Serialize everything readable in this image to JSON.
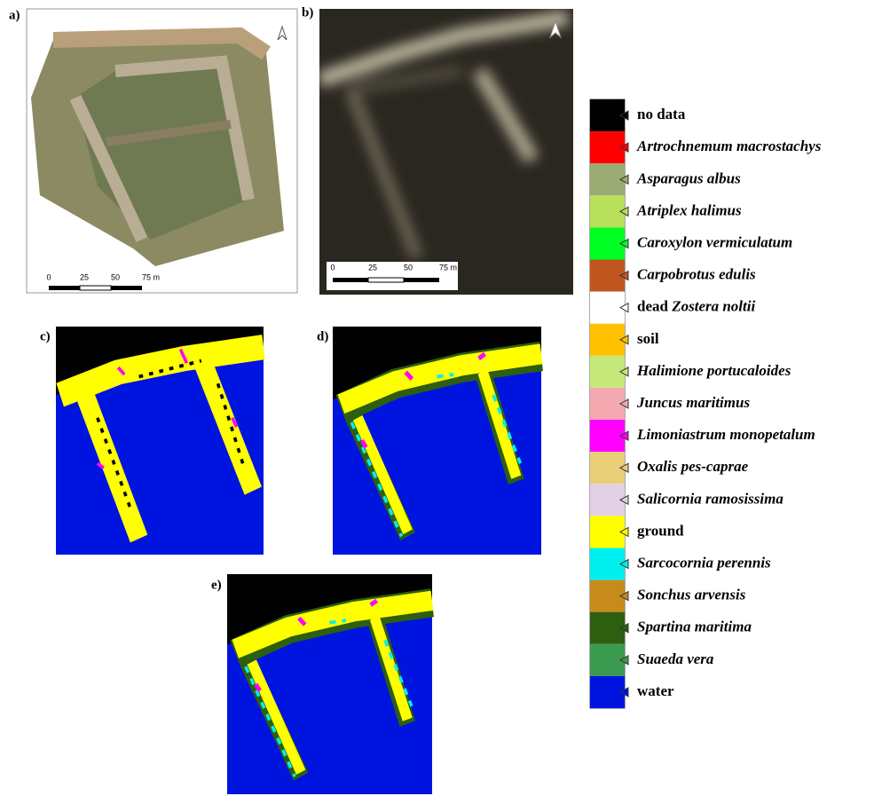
{
  "panels": [
    {
      "label": "a)",
      "scale_bar": [
        "0",
        "25",
        "50",
        "75 m"
      ]
    },
    {
      "label": "b)",
      "scale_bar": [
        "0",
        "25",
        "50",
        "75 m"
      ]
    },
    {
      "label": "c)"
    },
    {
      "label": "d)"
    },
    {
      "label": "e)"
    }
  ],
  "legend": {
    "items": [
      {
        "color": "#000000",
        "parts": [
          {
            "text": "no data",
            "italic": false
          }
        ]
      },
      {
        "color": "#ff0000",
        "parts": [
          {
            "text": "Artrochnemum macrostachys",
            "italic": true
          }
        ]
      },
      {
        "color": "#9aab74",
        "parts": [
          {
            "text": "Asparagus albus",
            "italic": true
          }
        ]
      },
      {
        "color": "#b8e05a",
        "parts": [
          {
            "text": "Atriplex halimus",
            "italic": true
          }
        ]
      },
      {
        "color": "#00ff22",
        "parts": [
          {
            "text": "Caroxylon vermiculatum",
            "italic": true
          }
        ]
      },
      {
        "color": "#c0561e",
        "parts": [
          {
            "text": "Carpobrotus edulis",
            "italic": true
          }
        ]
      },
      {
        "color": "#ffffff",
        "parts": [
          {
            "text": "dead ",
            "italic": false
          },
          {
            "text": "Zostera noltii",
            "italic": true
          }
        ]
      },
      {
        "color": "#ffc000",
        "parts": [
          {
            "text": "soil",
            "italic": false
          }
        ]
      },
      {
        "color": "#c6e87a",
        "parts": [
          {
            "text": "Halimione portucaloides",
            "italic": true
          }
        ]
      },
      {
        "color": "#f4a9b0",
        "parts": [
          {
            "text": "Juncus maritimus",
            "italic": true
          }
        ]
      },
      {
        "color": "#ff00ff",
        "parts": [
          {
            "text": "Limoniastrum monopetalum",
            "italic": true
          }
        ]
      },
      {
        "color": "#e8cf78",
        "parts": [
          {
            "text": "Oxalis pes-caprae",
            "italic": true
          }
        ]
      },
      {
        "color": "#e3d0e6",
        "parts": [
          {
            "text": "Salicornia ramosissima",
            "italic": true
          }
        ]
      },
      {
        "color": "#ffff00",
        "parts": [
          {
            "text": "ground",
            "italic": false
          }
        ]
      },
      {
        "color": "#00f0f0",
        "parts": [
          {
            "text": "Sarcocornia perennis",
            "italic": true
          }
        ]
      },
      {
        "color": "#c98a1c",
        "parts": [
          {
            "text": "Sonchus arvensis",
            "italic": true
          }
        ]
      },
      {
        "color": "#2e5e10",
        "parts": [
          {
            "text": "Spartina maritima",
            "italic": true
          }
        ]
      },
      {
        "color": "#3a9a50",
        "parts": [
          {
            "text": "Suaeda vera",
            "italic": true
          }
        ]
      },
      {
        "color": "#0014e0",
        "parts": [
          {
            "text": "water",
            "italic": false
          }
        ]
      }
    ]
  }
}
